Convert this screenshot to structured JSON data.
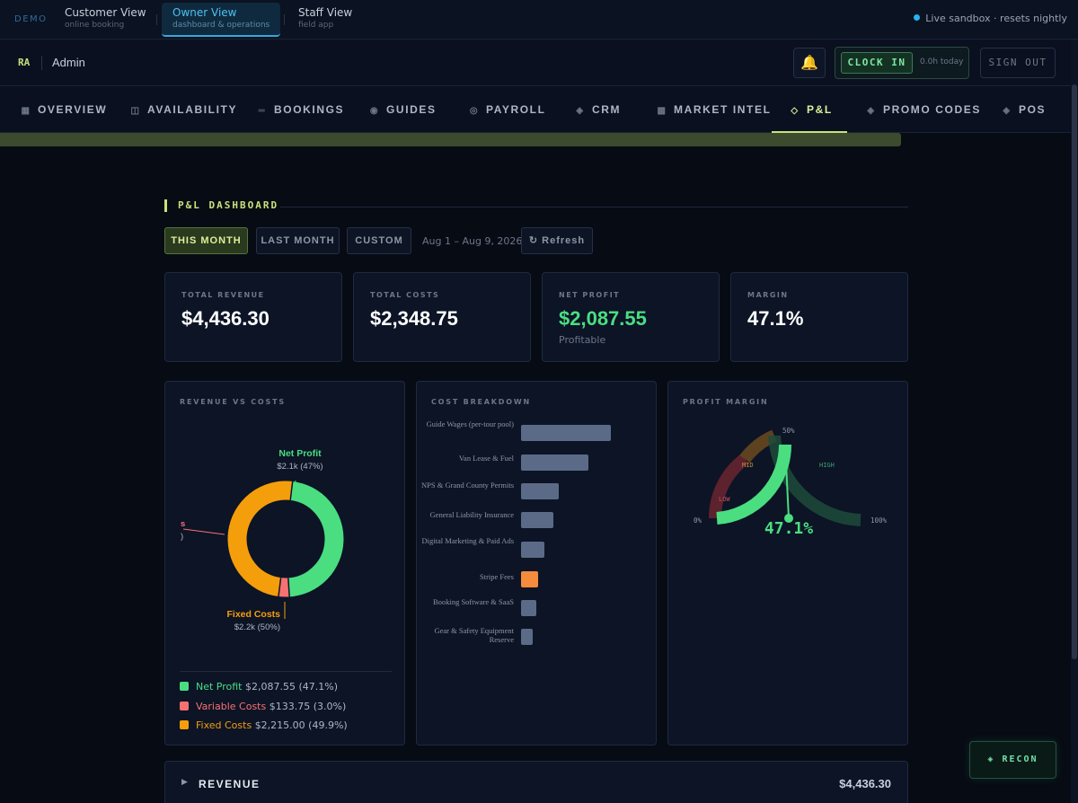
{
  "viewbar": {
    "demo": "DEMO",
    "views": [
      {
        "title": "Customer View",
        "subtitle": "online booking"
      },
      {
        "title": "Owner View",
        "subtitle": "dashboard & operations"
      },
      {
        "title": "Staff View",
        "subtitle": "field app"
      }
    ],
    "sandbox": "Live sandbox · resets nightly"
  },
  "header": {
    "initials": "RA",
    "role": "Admin",
    "clock_in": "CLOCK IN",
    "clock_today": "0.0h today",
    "sign_out": "SIGN OUT"
  },
  "tabs": [
    {
      "label": "OVERVIEW",
      "icon": "▦"
    },
    {
      "label": "AVAILABILITY",
      "icon": "◫"
    },
    {
      "label": "BOOKINGS",
      "icon": "═"
    },
    {
      "label": "GUIDES",
      "icon": "◉"
    },
    {
      "label": "PAYROLL",
      "icon": "◎"
    },
    {
      "label": "CRM",
      "icon": "◈"
    },
    {
      "label": "MARKET INTEL",
      "icon": "▩"
    },
    {
      "label": "P&L",
      "icon": "◇"
    },
    {
      "label": "PROMO CODES",
      "icon": "◈"
    },
    {
      "label": "POS",
      "icon": "◈"
    }
  ],
  "pnl": {
    "title": "P&L DASHBOARD",
    "range_buttons": [
      "THIS MONTH",
      "LAST MONTH",
      "CUSTOM"
    ],
    "date_range": "Aug 1 – Aug 9, 2026",
    "refresh": "↻ Refresh",
    "kpis": [
      {
        "label": "TOTAL REVENUE",
        "value": "$4,436.30"
      },
      {
        "label": "TOTAL COSTS",
        "value": "$2,348.75"
      },
      {
        "label": "NET PROFIT",
        "value": "$2,087.55",
        "sub": "Profitable"
      },
      {
        "label": "MARGIN",
        "value": "47.1%"
      }
    ],
    "revenue_vs_costs_title": "REVENUE VS COSTS",
    "cost_breakdown_title": "COST BREAKDOWN",
    "profit_margin_title": "PROFIT MARGIN",
    "donut_labels": {
      "net_profit": "Net Profit",
      "net_profit_sub": "$2.1k (47%)",
      "variable_fragment": "s",
      "variable_sub_fragment": ")",
      "fixed": "Fixed Costs",
      "fixed_sub": "$2.2k (50%)"
    },
    "legend": [
      {
        "name": "Net Profit",
        "value": "$2,087.55 (47.1%)",
        "color": "#4ade80"
      },
      {
        "name": "Variable Costs",
        "value": "$133.75 (3.0%)",
        "color": "#f87171"
      },
      {
        "name": "Fixed Costs",
        "value": "$2,215.00 (49.9%)",
        "color": "#f59e0b"
      }
    ],
    "gauge": {
      "value_label": "47.1%",
      "value_fraction": 0.471,
      "tick_0": "0%",
      "tick_50": "50%",
      "tick_100": "100%",
      "low": "LOW",
      "mid": "MID",
      "high": "HIGH"
    },
    "accordion": {
      "label": "REVENUE",
      "value": "$4,436.30"
    }
  },
  "chart_data": [
    {
      "type": "pie",
      "title": "REVENUE VS COSTS",
      "categories": [
        "Net Profit",
        "Variable Costs",
        "Fixed Costs"
      ],
      "values": [
        2087.55,
        133.75,
        2215.0
      ],
      "colors": [
        "#4ade80",
        "#f87171",
        "#f59e0b"
      ],
      "style": "donut"
    },
    {
      "type": "bar",
      "orientation": "horizontal",
      "title": "COST BREAKDOWN",
      "categories": [
        "Guide Wages (per-tour pool)",
        "Van Lease & Fuel",
        "NPS & Grand County Permits",
        "General Liability Insurance",
        "Digital Marketing & Paid Ads",
        "Stripe Fees",
        "Booking Software & SaaS",
        "Gear & Safety Equipment Reserve"
      ],
      "values": [
        660,
        495,
        275,
        240,
        170,
        125,
        115,
        85
      ],
      "highlight_index": 5,
      "colors": {
        "default": "#5b6b87",
        "highlight": "#f58b3c"
      }
    }
  ],
  "colors": {
    "accent": "#c8e27a",
    "green": "#4ade80",
    "blue": "#3aa6d8"
  }
}
